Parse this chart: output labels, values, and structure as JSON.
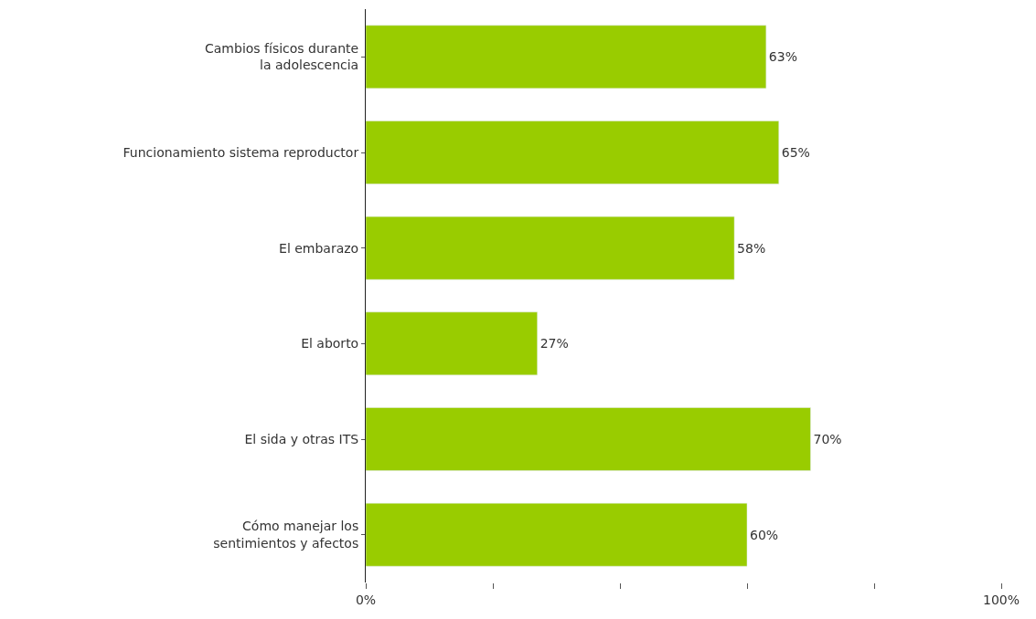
{
  "chart_data": {
    "type": "bar",
    "orientation": "horizontal",
    "categories": [
      "Cambios físicos durante\nla adolescencia",
      "Funcionamiento sistema reproductor",
      "El embarazo",
      "El aborto",
      "El sida y otras ITS",
      "Cómo manejar los\nsentimientos y afectos"
    ],
    "values": [
      63,
      65,
      58,
      27,
      70,
      60
    ],
    "value_labels": [
      "63%",
      "65%",
      "58%",
      "27%",
      "70%",
      "60%"
    ],
    "color": "#99cc00",
    "xlim": [
      0,
      100
    ],
    "xticks": [
      {
        "value": 0,
        "label": "0%"
      },
      {
        "value": 20,
        "label": null
      },
      {
        "value": 40,
        "label": null
      },
      {
        "value": 60,
        "label": null
      },
      {
        "value": 80,
        "label": null
      },
      {
        "value": 100,
        "label": "100%"
      }
    ],
    "tick_labels": "xy"
  }
}
